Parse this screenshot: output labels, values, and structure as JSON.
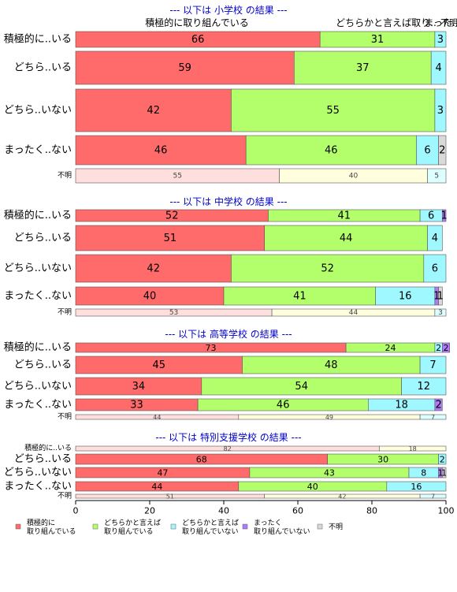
{
  "chart_data": {
    "type": "bar",
    "orientation": "horizontal",
    "stacked": true,
    "xlim": [
      0,
      100
    ],
    "x_ticks": [
      "0",
      "20",
      "40",
      "60",
      "80",
      "100"
    ],
    "top_labels": [
      "積極的に取り組んでいる",
      "どちらかと言えば取り..",
      "まった..",
      "不明"
    ],
    "legend": [
      {
        "label": "積極的に\n取り組んでいる",
        "color": "#ff6b6b"
      },
      {
        "label": "どちらかと言えば\n取り組んでいる",
        "color": "#b3ff6b"
      },
      {
        "label": "どちらかと言えば\n取り組んでいない",
        "color": "#9ff7ff"
      },
      {
        "label": "まったく\n取り組んでいない",
        "color": "#b07bf7"
      },
      {
        "label": "不明",
        "color": "#d9d9d9"
      }
    ],
    "sections": [
      {
        "title": "--- 以下は 小学校 の結果 ---",
        "rows": [
          {
            "label": "積極的に..いる",
            "values": [
              66,
              31,
              3,
              0,
              0
            ],
            "small": false
          },
          {
            "label": "どちら..いる",
            "values": [
              59,
              37,
              4,
              0,
              0
            ],
            "small": false
          },
          {
            "label": "どちら..いない",
            "values": [
              42,
              55,
              3,
              0,
              0
            ],
            "small": false
          },
          {
            "label": "まったく..ない",
            "values": [
              46,
              46,
              6,
              0,
              2
            ],
            "small": false
          },
          {
            "label": "不明",
            "values": [
              55,
              40,
              5,
              0,
              0
            ],
            "small": true
          }
        ]
      },
      {
        "title": "--- 以下は 中学校 の結果 ---",
        "rows": [
          {
            "label": "積極的に..いる",
            "values": [
              52,
              41,
              6,
              1,
              0
            ],
            "small": false
          },
          {
            "label": "どちら..いる",
            "values": [
              51,
              44,
              4,
              0,
              0
            ],
            "small": false
          },
          {
            "label": "どちら..いない",
            "values": [
              42,
              52,
              6,
              0,
              0
            ],
            "small": false
          },
          {
            "label": "まったく..ない",
            "values": [
              40,
              41,
              16,
              1,
              1
            ],
            "small": false
          },
          {
            "label": "不明",
            "values": [
              53,
              44,
              3,
              0,
              0
            ],
            "small": true
          }
        ]
      },
      {
        "title": "--- 以下は 高等学校 の結果 ---",
        "rows": [
          {
            "label": "積極的に..いる",
            "values": [
              73,
              24,
              2,
              2,
              0
            ],
            "small": false
          },
          {
            "label": "どちら..いる",
            "values": [
              45,
              48,
              7,
              0,
              0
            ],
            "small": false
          },
          {
            "label": "どちら..いない",
            "values": [
              34,
              54,
              12,
              0,
              0
            ],
            "small": false
          },
          {
            "label": "まったく..ない",
            "values": [
              33,
              46,
              18,
              2,
              0
            ],
            "small": false
          },
          {
            "label": "不明",
            "values": [
              44,
              49,
              7,
              0,
              0
            ],
            "small": true
          }
        ]
      },
      {
        "title": "--- 以下は 特別支援学校 の結果 ---",
        "rows": [
          {
            "label": "積極的に..いる",
            "values": [
              82,
              18,
              0,
              0,
              0
            ],
            "small": true
          },
          {
            "label": "どちら..いる",
            "values": [
              68,
              30,
              2,
              0,
              0
            ],
            "small": false
          },
          {
            "label": "どちら..いない",
            "values": [
              47,
              43,
              8,
              1,
              1
            ],
            "small": false
          },
          {
            "label": "まったく..ない",
            "values": [
              44,
              40,
              16,
              0,
              0
            ],
            "small": false
          },
          {
            "label": "不明",
            "values": [
              51,
              42,
              7,
              0,
              0
            ],
            "small": true
          }
        ]
      }
    ]
  }
}
